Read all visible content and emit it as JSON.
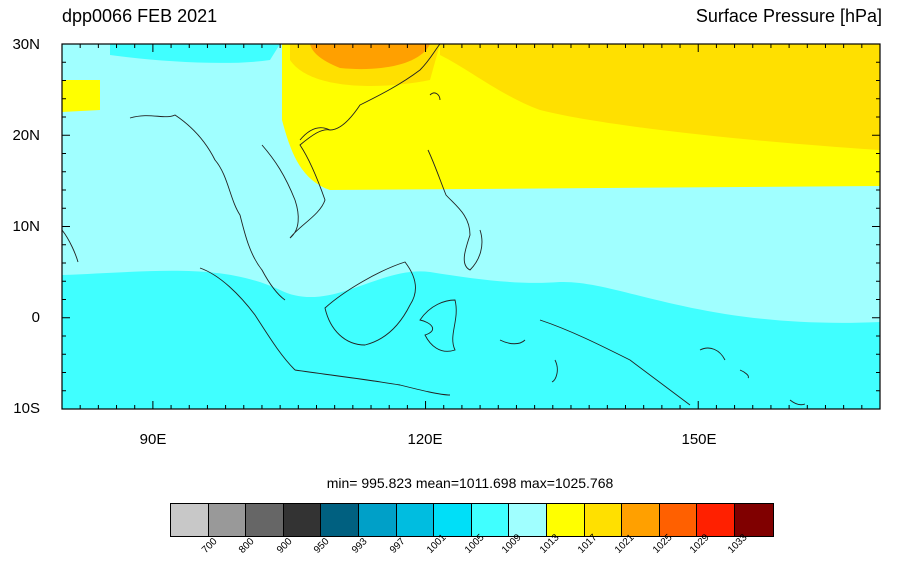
{
  "title_left": "dpp0066 FEB 2021",
  "title_right": "Surface Pressure [hPa]",
  "lat_labels": [
    "30N",
    "20N",
    "10N",
    "0",
    "10S"
  ],
  "lon_labels": [
    "90E",
    "120E",
    "150E"
  ],
  "stats": "min= 995.823  mean=1011.698  max=1025.768",
  "colorbar": {
    "colors": [
      "#c8c8c8",
      "#999999",
      "#666666",
      "#333333",
      "#006080",
      "#00a0c8",
      "#00bde0",
      "#00dff8",
      "#40ffff",
      "#a0ffff",
      "#ffff00",
      "#ffe000",
      "#ffa000",
      "#ff6000",
      "#ff2000",
      "#800000"
    ],
    "labels": [
      "700",
      "800",
      "900",
      "950",
      "993",
      "997",
      "1001",
      "1005",
      "1009",
      "1013",
      "1017",
      "1021",
      "1025",
      "1029",
      "1033"
    ]
  },
  "palette": {
    "ocean_south": "#40ffff",
    "ocean_mid": "#a0ffff",
    "land_north_yellow": "#ffff00",
    "north_gold": "#ffe000",
    "north_orange": "#ffa000"
  }
}
